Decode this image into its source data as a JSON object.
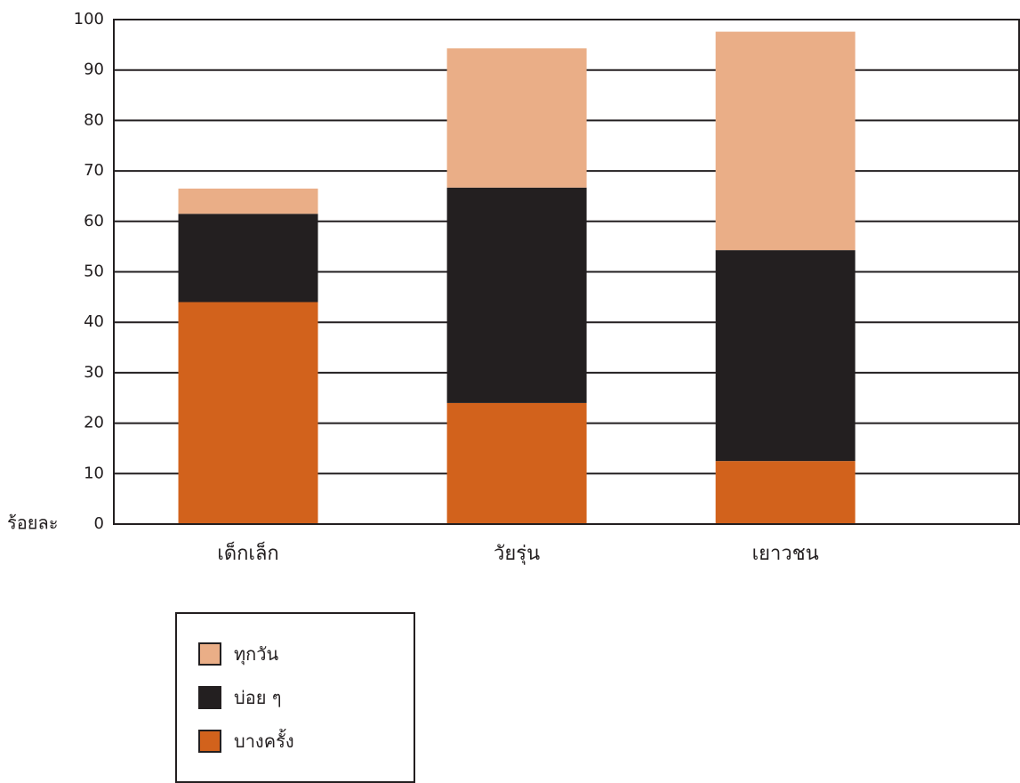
{
  "chart_data": {
    "type": "bar",
    "stacked": true,
    "title": "",
    "xlabel": "",
    "ylabel": "ร้อยละ",
    "ylim": [
      0,
      100
    ],
    "yticks": [
      0,
      10,
      20,
      30,
      40,
      50,
      60,
      70,
      80,
      90,
      100
    ],
    "grid": true,
    "legend_position": "bottom-left",
    "categories": [
      "เด็กเล็ก",
      "วัยรุ่น",
      "เยาวชน"
    ],
    "series": [
      {
        "name": "บางครั้ง",
        "color": "#d2621c",
        "values": [
          44,
          24,
          12.5
        ]
      },
      {
        "name": "บ่อย ๆ",
        "color": "#231f20",
        "values": [
          17.5,
          42.7,
          41.8
        ]
      },
      {
        "name": "ทุกวัน",
        "color": "#eaae87",
        "values": [
          5,
          27.6,
          43.3
        ]
      }
    ]
  }
}
